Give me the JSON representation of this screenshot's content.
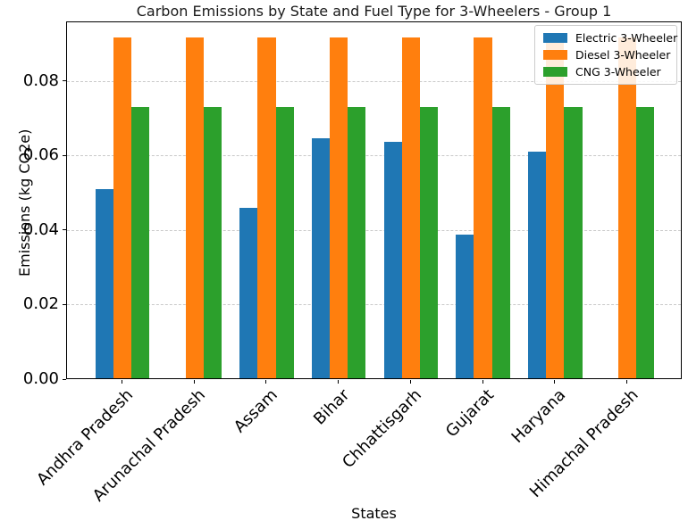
{
  "chart_data": {
    "type": "bar",
    "title": "Carbon Emissions by State and Fuel Type for 3-Wheelers - Group 1",
    "xlabel": "States",
    "ylabel": "Emissions (kg CO2e)",
    "categories": [
      "Andhra Pradesh",
      "Arunachal Pradesh",
      "Assam",
      "Bihar",
      "Chhattisgarh",
      "Gujarat",
      "Haryana",
      "Himachal Pradesh"
    ],
    "series": [
      {
        "name": "Electric 3-Wheeler",
        "color": "#1f77b4",
        "values": [
          0.0508,
          0,
          0.0458,
          0.0644,
          0.0635,
          0.0386,
          0.0608,
          0
        ]
      },
      {
        "name": "Diesel 3-Wheeler",
        "color": "#ff7f0e",
        "values": [
          0.0915,
          0.0915,
          0.0915,
          0.0915,
          0.0915,
          0.0915,
          0.0915,
          0.0915
        ]
      },
      {
        "name": "CNG 3-Wheeler",
        "color": "#2ca02c",
        "values": [
          0.0729,
          0.0729,
          0.0729,
          0.0729,
          0.0729,
          0.0729,
          0.0729,
          0.0729
        ]
      }
    ],
    "ylim": [
      0,
      0.096
    ],
    "yticks": [
      0,
      0.02,
      0.04,
      0.06,
      0.08
    ],
    "ytick_labels": [
      "0.00",
      "0.02",
      "0.04",
      "0.06",
      "0.08"
    ],
    "grid": "horizontal-dashed",
    "legend_position": "upper-right"
  }
}
